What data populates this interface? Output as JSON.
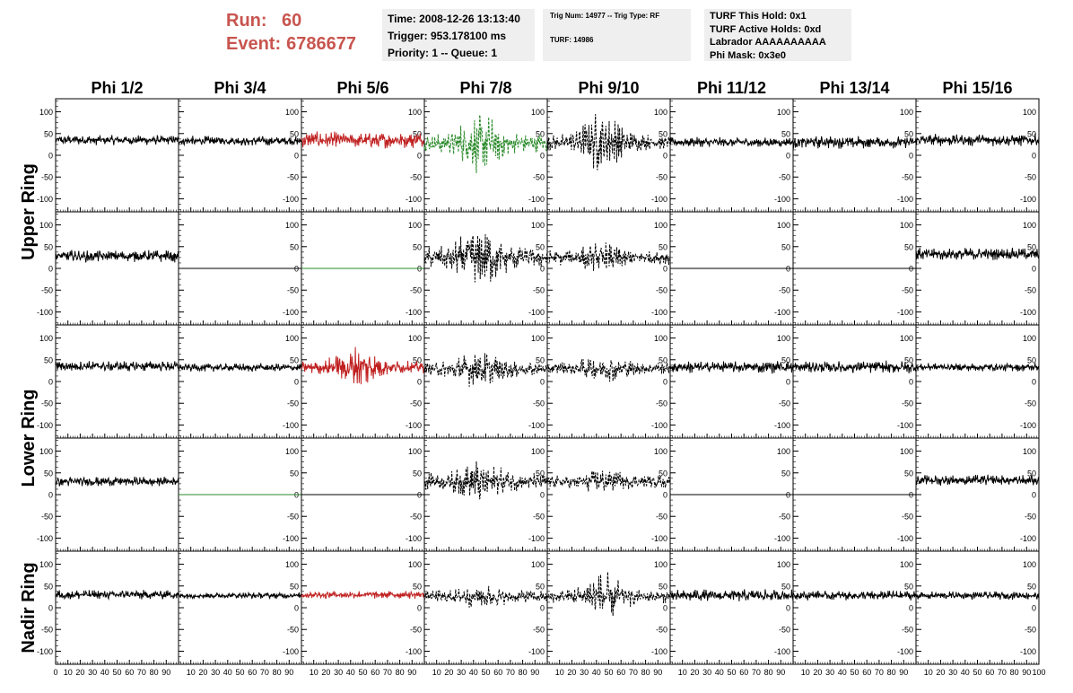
{
  "run_label": "Run:",
  "run_value": "60",
  "event_label": "Event:",
  "event_value": "6786677",
  "info_time": "Time: 2008-12-26 13:13:40",
  "info_trigger": "Trigger: 953.178100 ms",
  "info_priority": "Priority: 1 -- Queue: 1",
  "info_trignum": "Trig Num: 14977 -- Trig Type: RF",
  "info_turf": "TURF: 14986",
  "info_turf_hold": "TURF This Hold: 0x1",
  "info_turf_active": "TURF Active Holds: 0xd",
  "info_labrador": "Labrador AAAAAAAAAA",
  "info_phimask": "Phi Mask: 0x3e0",
  "colors": {
    "accent": "#c8554f",
    "triggered": "#c02020",
    "green": "#2a8a2a",
    "default": "#000000",
    "panel_bg": "#efefef"
  },
  "chart_data": {
    "type": "line",
    "columns": [
      "Phi 1/2",
      "Phi 3/4",
      "Phi 5/6",
      "Phi 7/8",
      "Phi 9/10",
      "Phi 11/12",
      "Phi 13/14",
      "Phi 15/16"
    ],
    "ring_labels": [
      "Upper Ring",
      "Lower Ring",
      "Nadir Ring"
    ],
    "xlim": [
      0,
      100
    ],
    "ylim": [
      -130,
      130
    ],
    "x_tick_labels": [
      "0",
      "10",
      "20",
      "30",
      "40",
      "50",
      "60",
      "70",
      "80",
      "90",
      "100"
    ],
    "y_tick_labels": [
      "100",
      "50",
      "0",
      "-50",
      "-100"
    ],
    "y_tick_values": [
      100,
      50,
      0,
      -50,
      -100
    ],
    "rows": [
      {
        "ring": "Upper Ring",
        "panels": [
          {
            "col": 0,
            "color": "#000000",
            "dashed": false,
            "flat": false,
            "mean": 35,
            "amp": 12,
            "burst": 0
          },
          {
            "col": 1,
            "color": "#000000",
            "dashed": false,
            "flat": false,
            "mean": 33,
            "amp": 12,
            "burst": 0
          },
          {
            "col": 2,
            "color": "#c02020",
            "dashed": false,
            "flat": false,
            "mean": 35,
            "amp": 20,
            "burst": 0
          },
          {
            "col": 3,
            "color": "#2a8a2a",
            "dashed": true,
            "flat": false,
            "mean": 28,
            "amp": 22,
            "burst": 55
          },
          {
            "col": 4,
            "color": "#000000",
            "dashed": true,
            "flat": false,
            "mean": 30,
            "amp": 18,
            "burst": 60
          },
          {
            "col": 5,
            "color": "#000000",
            "dashed": false,
            "flat": false,
            "mean": 30,
            "amp": 12,
            "burst": 0
          },
          {
            "col": 6,
            "color": "#000000",
            "dashed": false,
            "flat": false,
            "mean": 30,
            "amp": 15,
            "burst": 0
          },
          {
            "col": 7,
            "color": "#000000",
            "dashed": false,
            "flat": false,
            "mean": 35,
            "amp": 15,
            "burst": 0
          }
        ]
      },
      {
        "ring": "Upper Ring",
        "panels": [
          {
            "col": 0,
            "color": "#000000",
            "dashed": false,
            "flat": false,
            "mean": 28,
            "amp": 15,
            "burst": 0
          },
          {
            "col": 1,
            "color": "#000000",
            "dashed": false,
            "flat": true,
            "mean": 0,
            "amp": 0,
            "burst": 0
          },
          {
            "col": 2,
            "color": "#2a8a2a",
            "dashed": false,
            "flat": true,
            "mean": 0,
            "amp": 0,
            "burst": 0
          },
          {
            "col": 3,
            "color": "#000000",
            "dashed": true,
            "flat": false,
            "mean": 25,
            "amp": 25,
            "burst": 55
          },
          {
            "col": 4,
            "color": "#000000",
            "dashed": true,
            "flat": false,
            "mean": 25,
            "amp": 18,
            "burst": 20
          },
          {
            "col": 5,
            "color": "#000000",
            "dashed": false,
            "flat": true,
            "mean": 0,
            "amp": 0,
            "burst": 0
          },
          {
            "col": 6,
            "color": "#000000",
            "dashed": false,
            "flat": true,
            "mean": 0,
            "amp": 0,
            "burst": 0
          },
          {
            "col": 7,
            "color": "#000000",
            "dashed": false,
            "flat": false,
            "mean": 33,
            "amp": 15,
            "burst": 0
          }
        ]
      },
      {
        "ring": "Lower Ring",
        "panels": [
          {
            "col": 0,
            "color": "#000000",
            "dashed": false,
            "flat": false,
            "mean": 35,
            "amp": 13,
            "burst": 0
          },
          {
            "col": 1,
            "color": "#000000",
            "dashed": false,
            "flat": false,
            "mean": 32,
            "amp": 10,
            "burst": 0
          },
          {
            "col": 2,
            "color": "#c02020",
            "dashed": false,
            "flat": false,
            "mean": 33,
            "amp": 15,
            "burst": 40
          },
          {
            "col": 3,
            "color": "#000000",
            "dashed": true,
            "flat": false,
            "mean": 28,
            "amp": 18,
            "burst": 30
          },
          {
            "col": 4,
            "color": "#000000",
            "dashed": true,
            "flat": false,
            "mean": 30,
            "amp": 15,
            "burst": 20
          },
          {
            "col": 5,
            "color": "#000000",
            "dashed": false,
            "flat": false,
            "mean": 33,
            "amp": 15,
            "burst": 0
          },
          {
            "col": 6,
            "color": "#000000",
            "dashed": false,
            "flat": false,
            "mean": 33,
            "amp": 15,
            "burst": 0
          },
          {
            "col": 7,
            "color": "#000000",
            "dashed": false,
            "flat": false,
            "mean": 33,
            "amp": 10,
            "burst": 0
          }
        ]
      },
      {
        "ring": "Lower Ring",
        "panels": [
          {
            "col": 0,
            "color": "#000000",
            "dashed": false,
            "flat": false,
            "mean": 30,
            "amp": 12,
            "burst": 0
          },
          {
            "col": 1,
            "color": "#2a8a2a",
            "dashed": false,
            "flat": true,
            "mean": 0,
            "amp": 0,
            "burst": 0
          },
          {
            "col": 2,
            "color": "#000000",
            "dashed": false,
            "flat": true,
            "mean": 0,
            "amp": 0,
            "burst": 0
          },
          {
            "col": 3,
            "color": "#000000",
            "dashed": true,
            "flat": false,
            "mean": 30,
            "amp": 20,
            "burst": 35
          },
          {
            "col": 4,
            "color": "#000000",
            "dashed": true,
            "flat": false,
            "mean": 30,
            "amp": 15,
            "burst": 15
          },
          {
            "col": 5,
            "color": "#000000",
            "dashed": false,
            "flat": true,
            "mean": 0,
            "amp": 0,
            "burst": 0
          },
          {
            "col": 6,
            "color": "#000000",
            "dashed": false,
            "flat": true,
            "mean": 0,
            "amp": 0,
            "burst": 0
          },
          {
            "col": 7,
            "color": "#000000",
            "dashed": false,
            "flat": false,
            "mean": 33,
            "amp": 13,
            "burst": 0
          }
        ]
      },
      {
        "ring": "Nadir Ring",
        "panels": [
          {
            "col": 0,
            "color": "#000000",
            "dashed": false,
            "flat": false,
            "mean": 30,
            "amp": 12,
            "burst": 0
          },
          {
            "col": 1,
            "color": "#000000",
            "dashed": false,
            "flat": false,
            "mean": 28,
            "amp": 8,
            "burst": 0
          },
          {
            "col": 2,
            "color": "#c02020",
            "dashed": false,
            "flat": false,
            "mean": 30,
            "amp": 10,
            "burst": 0
          },
          {
            "col": 3,
            "color": "#000000",
            "dashed": true,
            "flat": false,
            "mean": 25,
            "amp": 15,
            "burst": 15
          },
          {
            "col": 4,
            "color": "#000000",
            "dashed": true,
            "flat": false,
            "mean": 25,
            "amp": 15,
            "burst": 45
          },
          {
            "col": 5,
            "color": "#000000",
            "dashed": false,
            "flat": false,
            "mean": 28,
            "amp": 15,
            "burst": 0
          },
          {
            "col": 6,
            "color": "#000000",
            "dashed": false,
            "flat": false,
            "mean": 28,
            "amp": 12,
            "burst": 0
          },
          {
            "col": 7,
            "color": "#000000",
            "dashed": false,
            "flat": false,
            "mean": 28,
            "amp": 10,
            "burst": 0
          }
        ]
      }
    ]
  }
}
